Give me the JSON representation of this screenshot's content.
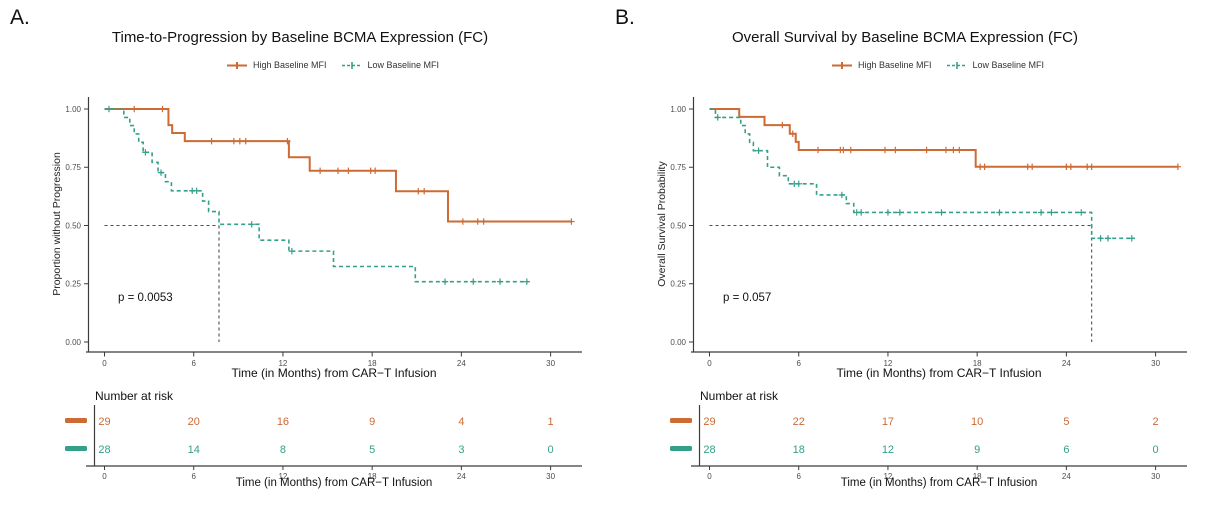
{
  "figure": {
    "background": "#ffffff",
    "number_at_risk_label": "Number at risk",
    "legend": [
      {
        "label": "High Baseline MFI",
        "color": "#CE6A33",
        "dashed": false
      },
      {
        "label": "Low Baseline MFI",
        "color": "#35A089",
        "dashed": true
      }
    ],
    "colors": {
      "high": "#CE6A33",
      "low": "#35A089",
      "reference": "#4d4d4d",
      "axis": "#3c3c3c",
      "tick_text": "#4d4d4d"
    }
  },
  "chart_data": [
    {
      "type": "line",
      "subtype": "kaplan-meier-step",
      "panel_label": "A.",
      "title": "Time-to-Progression by Baseline BCMA Expression (FC)",
      "xlabel": "Time (in Months) from CAR−T Infusion",
      "ylabel": "Proportion without Progression",
      "p_value_text": "p = 0.0053",
      "xlim": [
        0,
        32
      ],
      "ylim": [
        0,
        1
      ],
      "x_ticks": [
        0,
        6,
        12,
        18,
        24,
        30
      ],
      "y_tick_labels": [
        "0.00",
        "0.25",
        "0.50",
        "0.75",
        "1.00"
      ],
      "grid": false,
      "legend_position": "top",
      "median_reference": {
        "x": 7.7,
        "y": 0.5
      },
      "series": [
        {
          "name": "High Baseline MFI",
          "color": "#CE6A33",
          "dash": false,
          "width": 2,
          "steps": [
            [
              0,
              1.0
            ],
            [
              4.3,
              0.931
            ],
            [
              4.55,
              0.897
            ],
            [
              5.4,
              0.862
            ],
            [
              12.4,
              0.793
            ],
            [
              13.8,
              0.735
            ],
            [
              19.6,
              0.647
            ],
            [
              23.1,
              0.517
            ],
            [
              31.4,
              0.517
            ]
          ],
          "censors": [
            [
              2.0,
              1.0
            ],
            [
              3.9,
              1.0
            ],
            [
              7.2,
              0.862
            ],
            [
              8.7,
              0.862
            ],
            [
              9.1,
              0.862
            ],
            [
              9.5,
              0.862
            ],
            [
              12.3,
              0.862
            ],
            [
              14.5,
              0.735
            ],
            [
              15.7,
              0.735
            ],
            [
              16.4,
              0.735
            ],
            [
              17.9,
              0.735
            ],
            [
              18.2,
              0.735
            ],
            [
              21.1,
              0.647
            ],
            [
              21.5,
              0.647
            ],
            [
              24.1,
              0.517
            ],
            [
              25.1,
              0.517
            ],
            [
              25.5,
              0.517
            ],
            [
              31.4,
              0.517
            ]
          ]
        },
        {
          "name": "Low Baseline MFI",
          "color": "#35A089",
          "dash": true,
          "width": 1.6,
          "steps": [
            [
              0,
              1.0
            ],
            [
              1.3,
              0.964
            ],
            [
              1.7,
              0.929
            ],
            [
              2.0,
              0.893
            ],
            [
              2.3,
              0.857
            ],
            [
              2.6,
              0.814
            ],
            [
              3.2,
              0.771
            ],
            [
              3.6,
              0.727
            ],
            [
              4.1,
              0.688
            ],
            [
              4.5,
              0.649
            ],
            [
              6.6,
              0.605
            ],
            [
              7.0,
              0.56
            ],
            [
              7.7,
              0.505
            ],
            [
              10.4,
              0.437
            ],
            [
              12.4,
              0.39
            ],
            [
              15.4,
              0.324
            ],
            [
              20.9,
              0.259
            ],
            [
              28.5,
              0.259
            ]
          ],
          "censors": [
            [
              0.3,
              1.0
            ],
            [
              2.75,
              0.814
            ],
            [
              3.8,
              0.727
            ],
            [
              5.9,
              0.649
            ],
            [
              6.2,
              0.649
            ],
            [
              9.9,
              0.505
            ],
            [
              12.6,
              0.39
            ],
            [
              22.9,
              0.259
            ],
            [
              24.8,
              0.259
            ],
            [
              26.6,
              0.259
            ],
            [
              28.4,
              0.259
            ]
          ]
        }
      ],
      "risk_table": {
        "times": [
          0,
          6,
          12,
          18,
          24,
          30
        ],
        "rows": [
          {
            "name": "High Baseline MFI",
            "color": "#CE6A33",
            "values": [
              29,
              20,
              16,
              9,
              4,
              1
            ]
          },
          {
            "name": "Low Baseline MFI",
            "color": "#35A089",
            "values": [
              28,
              14,
              8,
              5,
              3,
              0
            ]
          }
        ]
      }
    },
    {
      "type": "line",
      "subtype": "kaplan-meier-step",
      "panel_label": "B.",
      "title": "Overall Survival by Baseline BCMA Expression (FC)",
      "xlabel": "Time (in Months) from CAR−T Infusion",
      "ylabel": "Overall Survival Probability",
      "p_value_text": "p = 0.057",
      "xlim": [
        0,
        32
      ],
      "ylim": [
        0,
        1
      ],
      "x_ticks": [
        0,
        6,
        12,
        18,
        24,
        30
      ],
      "y_tick_labels": [
        "0.00",
        "0.25",
        "0.50",
        "0.75",
        "1.00"
      ],
      "grid": false,
      "legend_position": "top",
      "median_reference": {
        "x": 25.7,
        "y": 0.5
      },
      "series": [
        {
          "name": "High Baseline MFI",
          "color": "#CE6A33",
          "dash": false,
          "width": 2,
          "steps": [
            [
              0,
              1.0
            ],
            [
              2.0,
              0.966
            ],
            [
              3.7,
              0.931
            ],
            [
              5.4,
              0.894
            ],
            [
              5.8,
              0.859
            ],
            [
              6.0,
              0.824
            ],
            [
              17.9,
              0.752
            ],
            [
              31.5,
              0.752
            ]
          ],
          "censors": [
            [
              4.9,
              0.931
            ],
            [
              5.6,
              0.894
            ],
            [
              7.3,
              0.824
            ],
            [
              8.8,
              0.824
            ],
            [
              9.0,
              0.824
            ],
            [
              9.5,
              0.824
            ],
            [
              11.8,
              0.824
            ],
            [
              12.5,
              0.824
            ],
            [
              14.6,
              0.824
            ],
            [
              15.9,
              0.824
            ],
            [
              16.4,
              0.824
            ],
            [
              16.8,
              0.824
            ],
            [
              18.2,
              0.752
            ],
            [
              18.5,
              0.752
            ],
            [
              21.4,
              0.752
            ],
            [
              21.7,
              0.752
            ],
            [
              24.0,
              0.752
            ],
            [
              24.3,
              0.752
            ],
            [
              25.4,
              0.752
            ],
            [
              25.7,
              0.752
            ],
            [
              31.5,
              0.752
            ]
          ]
        },
        {
          "name": "Low Baseline MFI",
          "color": "#35A089",
          "dash": true,
          "width": 1.6,
          "steps": [
            [
              0,
              1.0
            ],
            [
              0.4,
              0.964
            ],
            [
              2.1,
              0.929
            ],
            [
              2.4,
              0.893
            ],
            [
              2.7,
              0.857
            ],
            [
              2.95,
              0.821
            ],
            [
              3.9,
              0.75
            ],
            [
              4.7,
              0.714
            ],
            [
              5.3,
              0.679
            ],
            [
              7.2,
              0.631
            ],
            [
              9.2,
              0.594
            ],
            [
              9.7,
              0.556
            ],
            [
              25.7,
              0.445
            ],
            [
              28.6,
              0.445
            ]
          ],
          "censors": [
            [
              0.55,
              0.964
            ],
            [
              3.3,
              0.821
            ],
            [
              5.7,
              0.679
            ],
            [
              6.0,
              0.679
            ],
            [
              8.9,
              0.631
            ],
            [
              9.9,
              0.556
            ],
            [
              10.2,
              0.556
            ],
            [
              12.0,
              0.556
            ],
            [
              12.8,
              0.556
            ],
            [
              15.6,
              0.556
            ],
            [
              19.5,
              0.556
            ],
            [
              22.3,
              0.556
            ],
            [
              23.0,
              0.556
            ],
            [
              25.0,
              0.556
            ],
            [
              26.3,
              0.445
            ],
            [
              26.8,
              0.445
            ],
            [
              28.4,
              0.445
            ]
          ]
        }
      ],
      "risk_table": {
        "times": [
          0,
          6,
          12,
          18,
          24,
          30
        ],
        "rows": [
          {
            "name": "High Baseline MFI",
            "color": "#CE6A33",
            "values": [
              29,
              22,
              17,
              10,
              5,
              2
            ]
          },
          {
            "name": "Low Baseline MFI",
            "color": "#35A089",
            "values": [
              28,
              18,
              12,
              9,
              6,
              0
            ]
          }
        ]
      }
    }
  ]
}
